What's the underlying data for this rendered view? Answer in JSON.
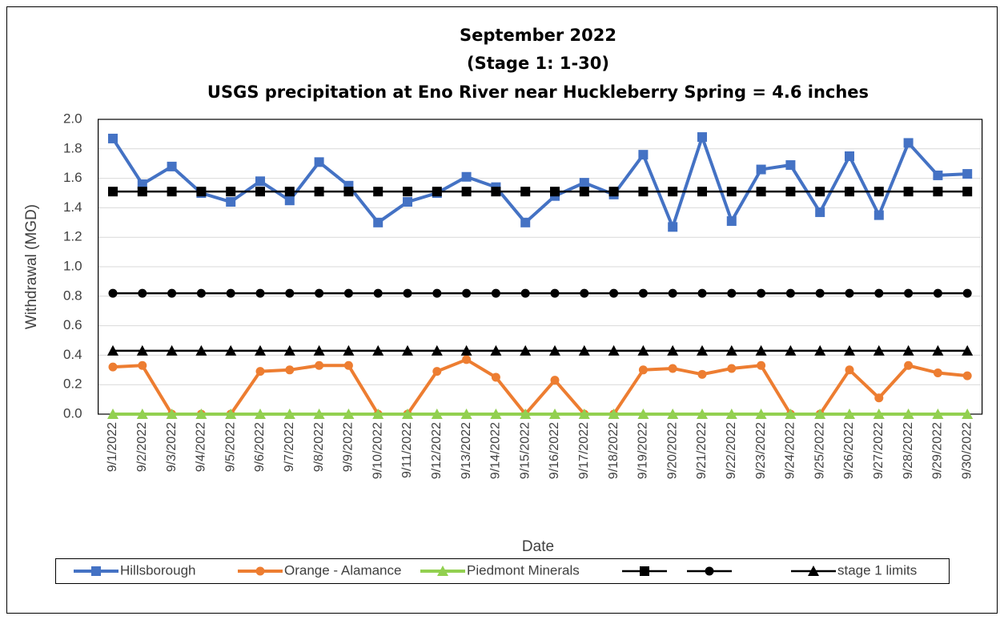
{
  "chart_data": {
    "type": "line",
    "title": [
      "September 2022",
      "(Stage 1: 1-30)",
      "USGS precipitation at Eno River near Huckleberry Spring = 4.6 inches"
    ],
    "y_label": "Withdrawal (MGD)",
    "x_label": "Date",
    "categories": [
      "9/1/2022",
      "9/2/2022",
      "9/3/2022",
      "9/4/2022",
      "9/5/2022",
      "9/6/2022",
      "9/7/2022",
      "9/8/2022",
      "9/9/2022",
      "9/10/2022",
      "9/11/2022",
      "9/12/2022",
      "9/13/2022",
      "9/14/2022",
      "9/15/2022",
      "9/16/2022",
      "9/17/2022",
      "9/18/2022",
      "9/19/2022",
      "9/20/2022",
      "9/21/2022",
      "9/22/2022",
      "9/23/2022",
      "9/24/2022",
      "9/25/2022",
      "9/26/2022",
      "9/27/2022",
      "9/28/2022",
      "9/29/2022",
      "9/30/2022"
    ],
    "ylim": [
      0,
      2
    ],
    "yticks": [
      {
        "value": 0,
        "label": "0.0"
      },
      0.2,
      0.4,
      0.6,
      0.8,
      {
        "value": 1,
        "label": "1.0"
      },
      1.2,
      1.4,
      1.6,
      1.8,
      {
        "value": 2,
        "label": "2.0"
      }
    ],
    "grid": true,
    "legend": "bottom",
    "series": [
      {
        "name": "Hillsborough",
        "color": "#4472c4",
        "marker": "square",
        "values": [
          1.87,
          1.56,
          1.68,
          1.5,
          1.44,
          1.58,
          1.45,
          1.71,
          1.55,
          1.3,
          1.44,
          1.5,
          1.61,
          1.54,
          1.3,
          1.48,
          1.57,
          1.49,
          1.76,
          1.27,
          1.88,
          1.31,
          1.66,
          1.69,
          1.37,
          1.75,
          1.35,
          1.84,
          1.62,
          1.63
        ]
      },
      {
        "name": "Orange - Alamance",
        "color": "#ed7d31",
        "marker": "circle",
        "values": [
          0.32,
          0.33,
          0,
          0,
          0,
          0.29,
          0.3,
          0.33,
          0.33,
          0,
          0,
          0.29,
          0.37,
          0.25,
          0,
          0.23,
          0,
          0,
          0.3,
          0.31,
          0.27,
          0.31,
          0.33,
          0,
          0,
          0.3,
          0.11,
          0.33,
          0.28,
          0.26
        ]
      },
      {
        "name": "Piedmont Minerals",
        "color": "#92d050",
        "marker": "triangle",
        "values": [
          0,
          0,
          0,
          0,
          0,
          0,
          0,
          0,
          0,
          0,
          0,
          0,
          0,
          0,
          0,
          0,
          0,
          0,
          0,
          0,
          0,
          0,
          0,
          0,
          0,
          0,
          0,
          0,
          0,
          0
        ]
      },
      {
        "color": "#000000",
        "marker": "square",
        "values": [
          1.51,
          1.51,
          1.51,
          1.51,
          1.51,
          1.51,
          1.51,
          1.51,
          1.51,
          1.51,
          1.51,
          1.51,
          1.51,
          1.51,
          1.51,
          1.51,
          1.51,
          1.51,
          1.51,
          1.51,
          1.51,
          1.51,
          1.51,
          1.51,
          1.51,
          1.51,
          1.51,
          1.51,
          1.51,
          1.51
        ]
      },
      {
        "color": "#000000",
        "marker": "circle",
        "values": [
          0.82,
          0.82,
          0.82,
          0.82,
          0.82,
          0.82,
          0.82,
          0.82,
          0.82,
          0.82,
          0.82,
          0.82,
          0.82,
          0.82,
          0.82,
          0.82,
          0.82,
          0.82,
          0.82,
          0.82,
          0.82,
          0.82,
          0.82,
          0.82,
          0.82,
          0.82,
          0.82,
          0.82,
          0.82,
          0.82
        ]
      },
      {
        "name": "stage 1 limits",
        "color": "#000000",
        "marker": "triangle",
        "values": [
          0.43,
          0.43,
          0.43,
          0.43,
          0.43,
          0.43,
          0.43,
          0.43,
          0.43,
          0.43,
          0.43,
          0.43,
          0.43,
          0.43,
          0.43,
          0.43,
          0.43,
          0.43,
          0.43,
          0.43,
          0.43,
          0.43,
          0.43,
          0.43,
          0.43,
          0.43,
          0.43,
          0.43,
          0.43,
          0.43
        ]
      }
    ]
  }
}
